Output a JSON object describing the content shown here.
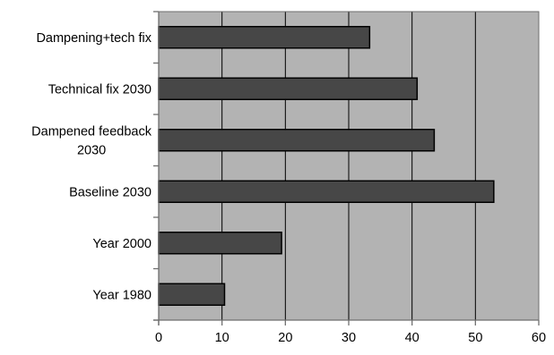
{
  "chart_data": {
    "type": "bar",
    "orientation": "horizontal",
    "categories": [
      [
        "Dampening+tech fix"
      ],
      [
        "Technical fix 2030"
      ],
      [
        "Dampened feedback",
        "2030"
      ],
      [
        "Baseline 2030"
      ],
      [
        "Year 2000"
      ],
      [
        "Year 1980"
      ]
    ],
    "values": [
      33.3,
      40.8,
      43.5,
      52.9,
      19.4,
      10.4
    ],
    "xlim": [
      0,
      60
    ],
    "x_ticks": [
      0,
      10,
      20,
      30,
      40,
      50,
      60
    ],
    "x_tick_labels": [
      "0",
      "10",
      "20",
      "30",
      "40",
      "50",
      "60"
    ],
    "title": "",
    "xlabel": "",
    "ylabel": "",
    "grid": "vertical",
    "legend": "none",
    "colors": {
      "plot_background": "#b3b3b3",
      "bar_fill": "#474747",
      "bar_outline": "#000000",
      "gridline": "#000000",
      "axis": "#6f6f6f"
    }
  }
}
